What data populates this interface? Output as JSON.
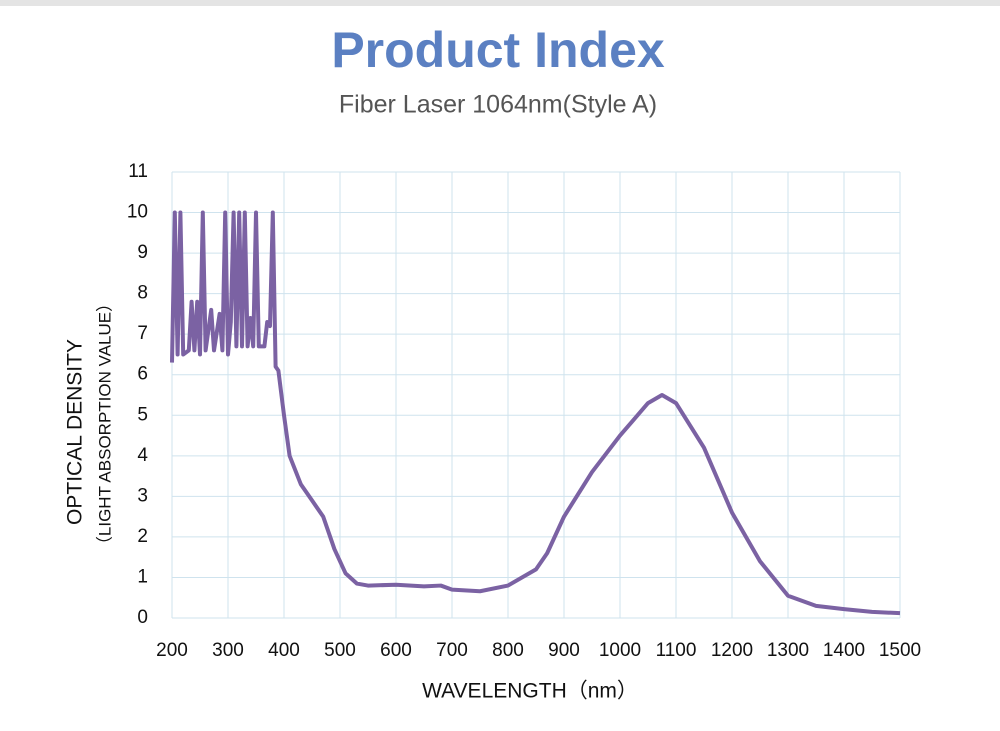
{
  "chart_data": {
    "type": "line",
    "title": "Product Index",
    "subtitle": "Fiber Laser 1064nm(Style A)",
    "y_label": "OPTICAL DENSITY",
    "y_label_sub": "（LIGHT ABSORPTION VALUE）",
    "x_label": "WAVELENGTH（nm）",
    "x": [
      200,
      205,
      210,
      215,
      220,
      230,
      235,
      240,
      245,
      250,
      255,
      260,
      270,
      275,
      285,
      290,
      295,
      300,
      305,
      310,
      315,
      320,
      325,
      330,
      335,
      340,
      345,
      350,
      355,
      365,
      370,
      375,
      380,
      385,
      390,
      400,
      410,
      430,
      450,
      470,
      490,
      510,
      530,
      550,
      600,
      650,
      680,
      700,
      750,
      800,
      850,
      870,
      900,
      950,
      1000,
      1050,
      1075,
      1100,
      1150,
      1200,
      1250,
      1300,
      1350,
      1400,
      1450,
      1500
    ],
    "series": [
      {
        "name": "Optical density",
        "color": "#7b62a3",
        "values": [
          6.3,
          10,
          6.5,
          10,
          6.5,
          6.6,
          7.8,
          6.6,
          7.8,
          6.5,
          10,
          6.6,
          7.6,
          6.6,
          7.5,
          6.6,
          10,
          6.5,
          7.3,
          10,
          6.7,
          10,
          6.7,
          10,
          6.7,
          7.4,
          6.7,
          10,
          6.7,
          6.7,
          7.3,
          7.2,
          10,
          6.2,
          6.1,
          5,
          4,
          3.3,
          2.9,
          2.5,
          1.7,
          1.1,
          0.85,
          0.8,
          0.82,
          0.78,
          0.8,
          0.7,
          0.66,
          0.8,
          1.2,
          1.6,
          2.5,
          3.6,
          4.5,
          5.3,
          5.5,
          5.3,
          4.2,
          2.6,
          1.4,
          0.55,
          0.3,
          0.22,
          0.15,
          0.12
        ]
      }
    ],
    "xlim": [
      200,
      1500
    ],
    "xticks": [
      200,
      300,
      400,
      500,
      600,
      700,
      800,
      900,
      1000,
      1100,
      1200,
      1300,
      1400,
      1500
    ],
    "ylim": [
      0,
      11
    ],
    "yticks": [
      0,
      1,
      2,
      3,
      4,
      5,
      6,
      7,
      8,
      9,
      10,
      11
    ],
    "grid": true
  }
}
